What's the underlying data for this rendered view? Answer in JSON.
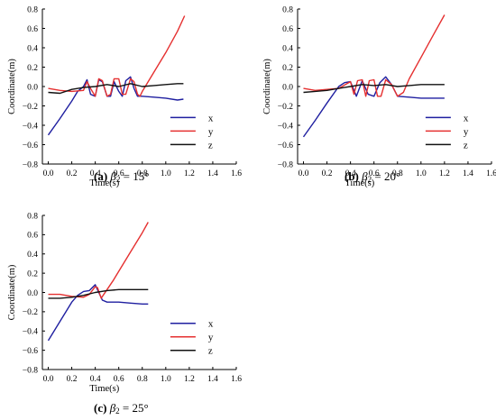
{
  "chart_data": [
    {
      "type": "line",
      "caption": {
        "label": "(a)",
        "symbol": "β",
        "sub": "2",
        "rest": " = 15°"
      },
      "xlabel": "Time(s)",
      "ylabel": "Coordinate(m)",
      "xlim": [
        -0.05,
        1.6
      ],
      "ylim": [
        -0.8,
        0.8
      ],
      "xticks": [
        "0.0",
        "0.2",
        "0.4",
        "0.6",
        "0.8",
        "1.0",
        "1.2",
        "1.4",
        "1.6"
      ],
      "yticks": [
        "0.8",
        "0.6",
        "0.4",
        "0.2",
        "0.0",
        "−0.2",
        "−0.4",
        "−0.6",
        "−0.8"
      ],
      "legend_position": "lower-right",
      "series": [
        {
          "name": "x",
          "color": "#1f1fa0",
          "x": [
            0,
            0.1,
            0.2,
            0.25,
            0.3,
            0.33,
            0.36,
            0.4,
            0.43,
            0.46,
            0.5,
            0.53,
            0.56,
            0.6,
            0.63,
            0.66,
            0.7,
            0.73,
            0.76,
            0.8,
            0.9,
            1.0,
            1.1,
            1.15
          ],
          "y": [
            -0.5,
            -0.33,
            -0.15,
            -0.05,
            0.0,
            0.07,
            -0.08,
            -0.1,
            0.07,
            0.05,
            -0.1,
            -0.1,
            0.05,
            -0.05,
            -0.1,
            0.06,
            0.1,
            -0.02,
            -0.1,
            -0.1,
            -0.11,
            -0.12,
            -0.14,
            -0.13
          ]
        },
        {
          "name": "y",
          "color": "#e53030",
          "x": [
            0,
            0.1,
            0.2,
            0.3,
            0.33,
            0.36,
            0.4,
            0.43,
            0.46,
            0.5,
            0.53,
            0.56,
            0.6,
            0.63,
            0.66,
            0.7,
            0.73,
            0.76,
            0.78,
            0.8,
            0.9,
            1.0,
            1.1,
            1.16
          ],
          "y": [
            -0.02,
            -0.04,
            -0.05,
            -0.04,
            0.05,
            -0.02,
            -0.1,
            0.08,
            0.06,
            -0.1,
            -0.08,
            0.08,
            0.08,
            -0.08,
            -0.08,
            0.08,
            0.05,
            -0.08,
            -0.1,
            -0.05,
            0.15,
            0.35,
            0.57,
            0.73
          ]
        },
        {
          "name": "z",
          "color": "#111111",
          "x": [
            0,
            0.1,
            0.2,
            0.3,
            0.4,
            0.5,
            0.6,
            0.7,
            0.8,
            0.9,
            1.0,
            1.1,
            1.15
          ],
          "y": [
            -0.06,
            -0.07,
            -0.03,
            -0.01,
            0.0,
            0.02,
            0.0,
            0.03,
            0.0,
            0.01,
            0.02,
            0.03,
            0.03
          ]
        }
      ]
    },
    {
      "type": "line",
      "caption": {
        "label": "(b)",
        "symbol": "β",
        "sub": "2",
        "rest": " = 20°"
      },
      "xlabel": "Time(s)",
      "ylabel": "Coordinate(m)",
      "xlim": [
        -0.05,
        1.6
      ],
      "ylim": [
        -0.8,
        0.8
      ],
      "xticks": [
        "0.0",
        "0.2",
        "0.4",
        "0.6",
        "0.8",
        "1.0",
        "1.2",
        "1.4",
        "1.6"
      ],
      "yticks": [
        "0.8",
        "0.6",
        "0.4",
        "0.2",
        "0.0",
        "−0.2",
        "−0.4",
        "−0.6",
        "−0.8"
      ],
      "legend_position": "lower-right",
      "series": [
        {
          "name": "x",
          "color": "#1f1fa0",
          "x": [
            0,
            0.1,
            0.2,
            0.3,
            0.35,
            0.4,
            0.45,
            0.5,
            0.55,
            0.6,
            0.65,
            0.7,
            0.75,
            0.8,
            0.9,
            1.0,
            1.1,
            1.2
          ],
          "y": [
            -0.52,
            -0.35,
            -0.17,
            0.0,
            0.04,
            0.05,
            -0.1,
            0.06,
            -0.08,
            -0.1,
            0.04,
            0.1,
            0.02,
            -0.1,
            -0.11,
            -0.12,
            -0.12,
            -0.12
          ]
        },
        {
          "name": "y",
          "color": "#e53030",
          "x": [
            0,
            0.1,
            0.2,
            0.3,
            0.4,
            0.43,
            0.46,
            0.5,
            0.53,
            0.56,
            0.6,
            0.63,
            0.66,
            0.7,
            0.75,
            0.8,
            0.85,
            0.9,
            1.0,
            1.1,
            1.2
          ],
          "y": [
            -0.02,
            -0.04,
            -0.03,
            -0.02,
            0.05,
            -0.08,
            0.06,
            0.07,
            -0.1,
            0.06,
            0.07,
            -0.1,
            -0.1,
            0.07,
            0.02,
            -0.1,
            -0.06,
            0.08,
            0.3,
            0.52,
            0.74
          ]
        },
        {
          "name": "z",
          "color": "#111111",
          "x": [
            0,
            0.1,
            0.2,
            0.3,
            0.4,
            0.5,
            0.6,
            0.7,
            0.8,
            0.9,
            1.0,
            1.1,
            1.2
          ],
          "y": [
            -0.06,
            -0.05,
            -0.04,
            -0.02,
            0.0,
            0.02,
            0.01,
            0.02,
            0.0,
            0.01,
            0.02,
            0.02,
            0.02
          ]
        }
      ]
    },
    {
      "type": "line",
      "caption": {
        "label": "(c)",
        "symbol": "β",
        "sub": "2",
        "rest": " = 25°"
      },
      "xlabel": "Time(s)",
      "ylabel": "Coordinate(m)",
      "xlim": [
        -0.05,
        1.6
      ],
      "ylim": [
        -0.8,
        0.8
      ],
      "xticks": [
        "0.0",
        "0.2",
        "0.4",
        "0.6",
        "0.8",
        "1.0",
        "1.2",
        "1.4",
        "1.6"
      ],
      "yticks": [
        "0.8",
        "0.6",
        "0.4",
        "0.2",
        "0.0",
        "−0.2",
        "−0.4",
        "−0.6",
        "−0.8"
      ],
      "legend_position": "lower-right",
      "series": [
        {
          "name": "x",
          "color": "#1f1fa0",
          "x": [
            0,
            0.05,
            0.1,
            0.15,
            0.2,
            0.25,
            0.3,
            0.35,
            0.4,
            0.43,
            0.46,
            0.5,
            0.6,
            0.7,
            0.8,
            0.85
          ],
          "y": [
            -0.5,
            -0.4,
            -0.3,
            -0.2,
            -0.1,
            -0.03,
            0.01,
            0.02,
            0.08,
            0.0,
            -0.08,
            -0.1,
            -0.1,
            -0.11,
            -0.12,
            -0.12
          ]
        },
        {
          "name": "y",
          "color": "#e53030",
          "x": [
            0,
            0.1,
            0.2,
            0.3,
            0.35,
            0.4,
            0.42,
            0.45,
            0.5,
            0.55,
            0.6,
            0.7,
            0.8,
            0.85
          ],
          "y": [
            -0.02,
            -0.02,
            -0.04,
            -0.05,
            -0.02,
            0.06,
            0.05,
            -0.06,
            0.03,
            0.12,
            0.22,
            0.42,
            0.62,
            0.73
          ]
        },
        {
          "name": "z",
          "color": "#111111",
          "x": [
            0,
            0.1,
            0.2,
            0.3,
            0.4,
            0.5,
            0.6,
            0.7,
            0.8,
            0.85
          ],
          "y": [
            -0.06,
            -0.06,
            -0.05,
            -0.03,
            0.0,
            0.02,
            0.03,
            0.03,
            0.03,
            0.03
          ]
        }
      ]
    }
  ]
}
